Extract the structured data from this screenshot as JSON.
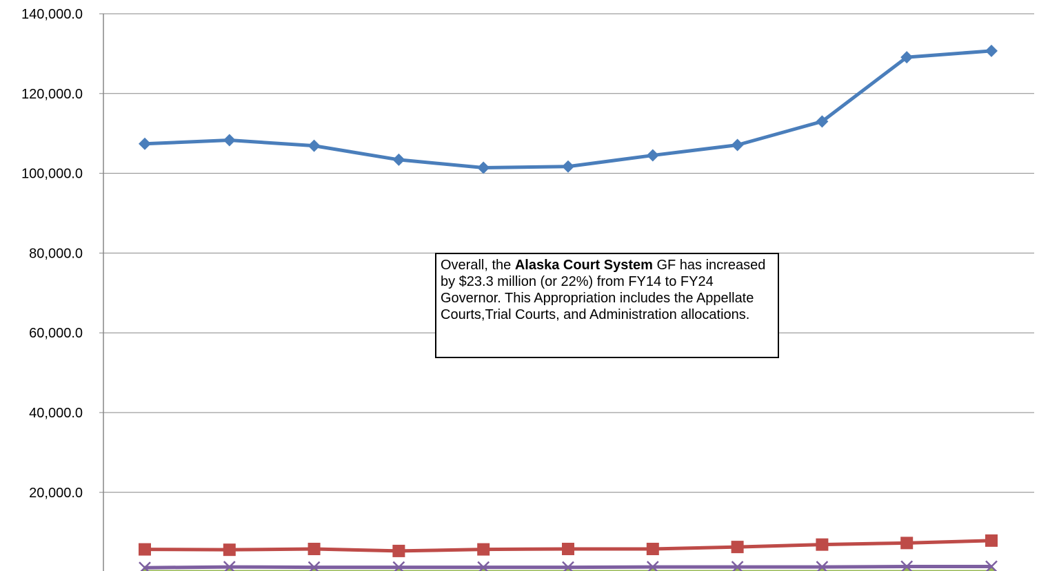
{
  "chart_data": {
    "type": "line",
    "ylim": [
      0,
      140000
    ],
    "yticks": [
      "20,000.0",
      "40,000.0",
      "60,000.0",
      "80,000.0",
      "100,000.0",
      "120,000.0",
      "140,000.0"
    ],
    "grid": true,
    "series": [
      {
        "color": "#4a7ebb",
        "marker": "diamond",
        "values": [
          107400,
          108300,
          106900,
          103400,
          101400,
          101700,
          104500,
          107100,
          113000,
          129100,
          130700
        ]
      },
      {
        "color": "#be4b48",
        "marker": "square",
        "values": [
          5700,
          5600,
          5800,
          5300,
          5700,
          5800,
          5800,
          6300,
          6900,
          7300,
          7900
        ]
      },
      {
        "color": "#98b954",
        "marker": "triangle",
        "values": [
          100,
          100,
          100,
          100,
          100,
          100,
          100,
          100,
          100,
          100,
          100
        ]
      },
      {
        "color": "#7d5fa0",
        "marker": "x",
        "values": [
          1100,
          1300,
          1200,
          1200,
          1200,
          1200,
          1300,
          1300,
          1300,
          1400,
          1400
        ]
      }
    ]
  },
  "annotation": {
    "prefix": "Overall, the ",
    "bold": "Alaska Court System",
    "suffix": " GF has increased by $23.3 million (or 22%) from FY14 to FY24 Governor. This Appropriation includes the Appellate Courts,Trial Courts, and Administration allocations."
  }
}
